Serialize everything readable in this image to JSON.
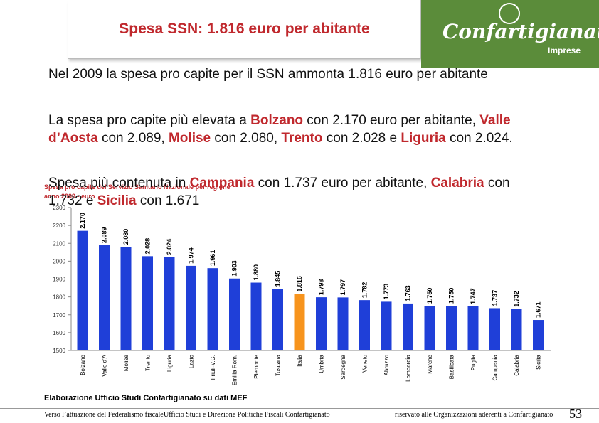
{
  "header": {
    "title": "Spesa SSN: 1.816 euro per abitante",
    "logo": "Confartigianato",
    "logo_sub": "Imprese"
  },
  "paragraphs": [
    [
      {
        "text": "Nel 2009 la spesa pro capite per il SSN ammonta 1.816 euro per abitante"
      }
    ],
    [
      {
        "text": "La spesa pro capite più elevata a "
      },
      {
        "text": "Bolzano",
        "color": "#c0282d"
      },
      {
        "text": " con 2.170 euro per abitante, "
      },
      {
        "text": "Valle d’Aosta",
        "color": "#c0282d"
      },
      {
        "text": " con 2.089, "
      },
      {
        "text": "Molise",
        "color": "#c0282d"
      },
      {
        "text": " con 2.080, "
      },
      {
        "text": "Trento",
        "color": "#c0282d"
      },
      {
        "text": " con 2.028 e "
      },
      {
        "text": "Liguria",
        "color": "#c0282d"
      },
      {
        "text": " con 2.024."
      }
    ],
    [
      {
        "text": "Spesa più contenuta in "
      },
      {
        "text": "Campania",
        "color": "#c0282d"
      },
      {
        "text": " con 1.737 euro per abitante, "
      },
      {
        "text": "Calabria",
        "color": "#c0282d"
      },
      {
        "text": " con 1.732 e "
      },
      {
        "text": "Sicilia",
        "color": "#c0282d"
      },
      {
        "text": " con 1.671"
      }
    ]
  ],
  "chart_data": {
    "type": "bar",
    "title": "Spesa pro capite del Servizio Sanitario Nazionale per regione",
    "subtitle": "anno 2009 - euro",
    "categories": [
      "Bolzano",
      "Valle d'A",
      "Molise",
      "Trento",
      "Liguria",
      "Lazio",
      "Friuli-V.G.",
      "Emilia Rom.",
      "Piemonte",
      "Toscana",
      "Italia",
      "Umbria",
      "Sardegna",
      "Veneto",
      "Abruzzo",
      "Lombardia",
      "Marche",
      "Basilicata",
      "Puglia",
      "Campania",
      "Calabria",
      "Sicilia"
    ],
    "values": [
      2170,
      2089,
      2080,
      2028,
      2024,
      1974,
      1961,
      1903,
      1880,
      1845,
      1816,
      1798,
      1797,
      1782,
      1773,
      1763,
      1750,
      1750,
      1747,
      1737,
      1732,
      1671
    ],
    "value_labels": [
      "2.170",
      "2.089",
      "2.080",
      "2.028",
      "2.024",
      "1.974",
      "1.961",
      "1.903",
      "1.880",
      "1.845",
      "1.816",
      "1.798",
      "1.797",
      "1.782",
      "1.773",
      "1.763",
      "1.750",
      "1.750",
      "1.747",
      "1.737",
      "1.732",
      "1.671"
    ],
    "colors": [
      "#1f3fd8",
      "#1f3fd8",
      "#1f3fd8",
      "#1f3fd8",
      "#1f3fd8",
      "#1f3fd8",
      "#1f3fd8",
      "#1f3fd8",
      "#1f3fd8",
      "#1f3fd8",
      "#f7941d",
      "#1f3fd8",
      "#1f3fd8",
      "#1f3fd8",
      "#1f3fd8",
      "#1f3fd8",
      "#1f3fd8",
      "#1f3fd8",
      "#1f3fd8",
      "#1f3fd8",
      "#1f3fd8",
      "#1f3fd8"
    ],
    "ylim": [
      1500,
      2300
    ],
    "yticks": [
      1500,
      1600,
      1700,
      1800,
      1900,
      2000,
      2100,
      2200,
      2300
    ]
  },
  "source": "Elaborazione Ufficio Studi Confartigianato su dati MEF",
  "footer": {
    "left": "Verso l’attuazione del Federalismo fiscale",
    "center": "Ufficio Studi e Direzione Politiche Fiscali Confartigianato",
    "right": "riservato alle Organizzazioni aderenti a Confartigianato",
    "page": "53"
  }
}
